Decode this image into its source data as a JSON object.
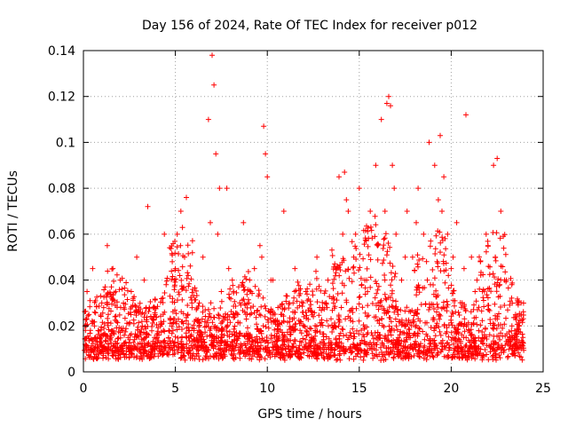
{
  "chart_data": {
    "type": "scatter",
    "title": "Day 156 of 2024, Rate Of TEC Index for receiver p012",
    "xlabel": "GPS time / hours",
    "ylabel": "ROTI / TECUs",
    "xlim": [
      0,
      25
    ],
    "ylim": [
      0,
      0.14
    ],
    "xticks": [
      0,
      5,
      10,
      15,
      20,
      25
    ],
    "xtick_labels": [
      "0",
      "5",
      "10",
      "15",
      "20",
      "25"
    ],
    "yticks": [
      0,
      0.02,
      0.04,
      0.06,
      0.08,
      0.1,
      0.12,
      0.14
    ],
    "ytick_labels": [
      "0",
      "0.02",
      "0.04",
      "0.06",
      "0.08",
      "0.1",
      "0.12",
      "0.14"
    ],
    "grid": true,
    "marker": "+",
    "color": "#ff0000",
    "series": [
      {
        "name": "ROTI",
        "description_values": "dense cloud mostly 0.005-0.04 TECU over 0-24 h",
        "x": [
          0.1,
          0.3,
          0.5,
          0.8,
          1.0,
          1.3,
          1.5,
          1.8,
          2.0,
          2.3,
          2.6,
          2.9,
          3.2,
          3.5,
          3.8,
          4.1,
          4.4,
          4.7,
          5.0,
          5.3,
          5.6,
          5.9,
          6.2,
          6.5,
          6.8,
          7.0,
          7.1,
          7.2,
          7.3,
          7.5,
          7.8,
          8.1,
          8.4,
          8.7,
          9.0,
          9.3,
          9.6,
          9.8,
          9.9,
          10.0,
          10.3,
          10.6,
          10.9,
          11.2,
          11.5,
          11.8,
          12.1,
          12.4,
          12.7,
          13.0,
          13.3,
          13.6,
          13.9,
          14.1,
          14.2,
          14.4,
          14.7,
          15.0,
          15.3,
          15.6,
          15.9,
          16.2,
          16.5,
          16.6,
          16.7,
          16.8,
          17.0,
          17.3,
          17.6,
          17.9,
          18.2,
          18.5,
          18.8,
          19.1,
          19.4,
          19.6,
          19.8,
          20.0,
          20.3,
          20.6,
          20.8,
          21.1,
          21.4,
          21.7,
          22.0,
          22.3,
          22.5,
          22.7,
          23.0,
          23.3,
          23.6,
          23.9,
          0.2,
          0.6,
          1.1,
          1.6,
          2.1,
          2.7,
          3.3,
          3.9,
          4.5,
          5.1,
          5.5,
          5.7,
          6.3,
          6.9,
          7.4,
          7.9,
          8.5,
          9.1,
          9.7,
          10.2,
          10.8,
          11.4,
          12.0,
          12.6,
          13.2,
          13.8,
          14.3,
          14.8,
          15.4,
          16.0,
          16.4,
          16.9,
          17.5,
          18.1,
          18.7,
          19.3,
          19.5,
          20.1,
          20.7,
          21.3,
          21.9,
          22.4,
          22.9,
          23.5,
          23.8
        ],
        "y": [
          0.012,
          0.025,
          0.045,
          0.018,
          0.03,
          0.055,
          0.015,
          0.022,
          0.04,
          0.013,
          0.035,
          0.05,
          0.02,
          0.072,
          0.028,
          0.016,
          0.06,
          0.033,
          0.045,
          0.07,
          0.076,
          0.03,
          0.022,
          0.05,
          0.11,
          0.138,
          0.125,
          0.095,
          0.06,
          0.035,
          0.08,
          0.04,
          0.025,
          0.065,
          0.03,
          0.045,
          0.055,
          0.107,
          0.095,
          0.085,
          0.04,
          0.02,
          0.07,
          0.03,
          0.045,
          0.022,
          0.035,
          0.015,
          0.05,
          0.028,
          0.04,
          0.03,
          0.085,
          0.06,
          0.087,
          0.07,
          0.05,
          0.08,
          0.04,
          0.07,
          0.09,
          0.11,
          0.117,
          0.12,
          0.116,
          0.09,
          0.06,
          0.04,
          0.07,
          0.05,
          0.08,
          0.06,
          0.1,
          0.09,
          0.103,
          0.085,
          0.06,
          0.045,
          0.065,
          0.03,
          0.112,
          0.05,
          0.04,
          0.035,
          0.055,
          0.09,
          0.093,
          0.07,
          0.04,
          0.02,
          0.03,
          0.015,
          0.035,
          0.02,
          0.028,
          0.045,
          0.018,
          0.032,
          0.04,
          0.025,
          0.038,
          0.06,
          0.05,
          0.042,
          0.03,
          0.065,
          0.08,
          0.045,
          0.03,
          0.035,
          0.05,
          0.04,
          0.025,
          0.03,
          0.02,
          0.018,
          0.03,
          0.045,
          0.075,
          0.06,
          0.04,
          0.055,
          0.07,
          0.08,
          0.05,
          0.065,
          0.04,
          0.075,
          0.07,
          0.05,
          0.045,
          0.035,
          0.06,
          0.05,
          0.04,
          0.025,
          0.01
        ]
      }
    ]
  }
}
